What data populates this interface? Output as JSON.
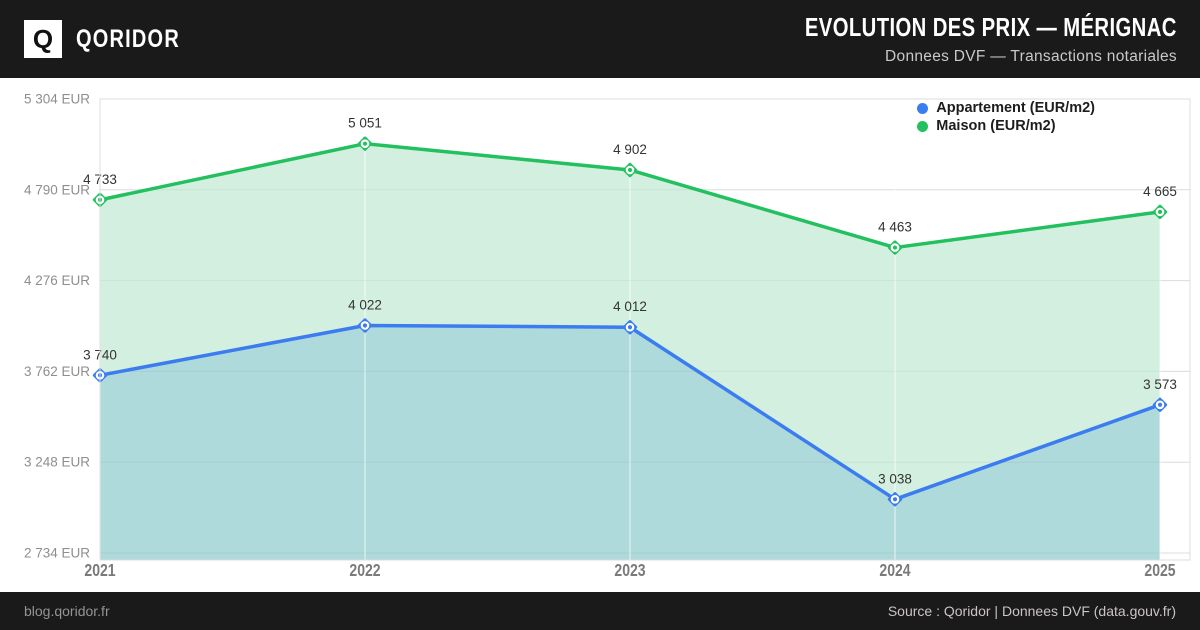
{
  "header": {
    "brand": "QORIDOR",
    "logo_letter": "Q",
    "title": "EVOLUTION DES PRIX — MÉRIGNAC",
    "subtitle": "Donnees DVF — Transactions notariales"
  },
  "footer": {
    "site": "blog.qoridor.fr",
    "source": "Source : Qoridor | Donnees DVF (data.gouv.fr)"
  },
  "colors": {
    "header_bg": "#1a1a1a",
    "appartement": "#3b7cf0",
    "maison": "#22c05f",
    "area_maison": "#d3efdf",
    "area_appartement": "#aedadb",
    "grid": "#e8e8e8",
    "axis_text": "#8e8e8e",
    "tick_text": "#7a7a7a",
    "label_text": "#333333"
  },
  "legend": {
    "items": [
      {
        "label": "Appartement (EUR/m2)",
        "color": "#3b7cf0"
      },
      {
        "label": "Maison (EUR/m2)",
        "color": "#22c05f"
      }
    ]
  },
  "chart_data": {
    "type": "line",
    "title": "EVOLUTION DES PRIX — MÉRIGNAC",
    "x": [
      "2021",
      "2022",
      "2023",
      "2024",
      "2025"
    ],
    "series": [
      {
        "name": "Maison (EUR/m2)",
        "color": "#22c05f",
        "area_color": "#d3efdf",
        "values": [
          4733,
          5051,
          4902,
          4463,
          4665
        ],
        "point_labels": [
          "4 733",
          "5 051",
          "4 902",
          "4 463",
          "4 665"
        ]
      },
      {
        "name": "Appartement (EUR/m2)",
        "color": "#3b7cf0",
        "area_color": "#aedadb",
        "values": [
          3740,
          4022,
          4012,
          3038,
          3573
        ],
        "point_labels": [
          "3 740",
          "4 022",
          "4 012",
          "3 038",
          "3 573"
        ]
      }
    ],
    "y_ticks": [
      {
        "value": 5304,
        "label": "5 304 EUR"
      },
      {
        "value": 4790,
        "label": "4 790 EUR"
      },
      {
        "value": 4276,
        "label": "4 276 EUR"
      },
      {
        "value": 3762,
        "label": "3 762 EUR"
      },
      {
        "value": 3248,
        "label": "3 248 EUR"
      },
      {
        "value": 2734,
        "label": "2 734 EUR"
      }
    ],
    "ylim": [
      2734,
      5304
    ],
    "grid": true,
    "legend_position": "top-right"
  }
}
